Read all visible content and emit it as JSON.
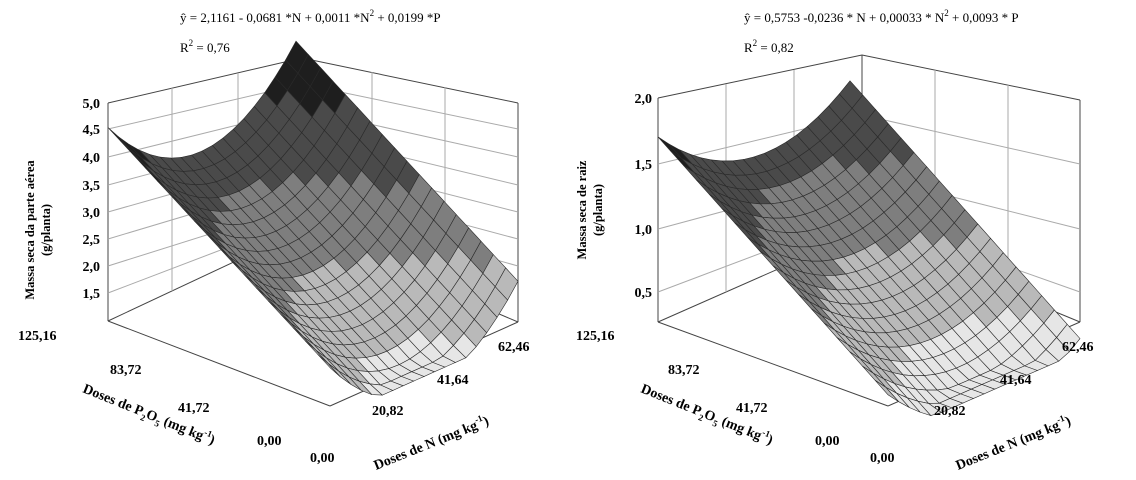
{
  "chart_data": [
    {
      "type": "surface3d",
      "equation": {
        "prefix": "ŷ = 2,1161 - 0,0681 *N + 0,0011 *N",
        "sup": "2",
        "suffix": " + 0,0199 *P"
      },
      "r2": {
        "prefix": "R",
        "sup": "2",
        "suffix": " = 0,76"
      },
      "coefficients": {
        "b0": 2.1161,
        "bN": -0.0681,
        "bN2": 0.0011,
        "bP": 0.0199
      },
      "zlabel_line1": "Massa seca da parte aérea",
      "zlabel_line2": "(g/planta)",
      "zlim": [
        1.5,
        5.0
      ],
      "zticks": [
        "5,0",
        "4,5",
        "4,0",
        "3,5",
        "3,0",
        "2,5",
        "2,0",
        "1,5"
      ],
      "p_ticks": [
        "0,00",
        "41,72",
        "83,72",
        "125,16"
      ],
      "n_ticks": [
        "0,00",
        "20,82",
        "41,64",
        "62,46"
      ],
      "xlabel_text": "Doses de P",
      "xlabel_sub": "2",
      "xlabel_mid": "O",
      "xlabel_sub2": "5",
      "xlabel_unit": " (mg kg",
      "xlabel_sup": "-1",
      "xlabel_close": ")",
      "ylabel_text": "Doses de N (mg kg",
      "ylabel_sup": "-1",
      "ylabel_close": ")",
      "p_range": [
        0,
        125.16
      ],
      "n_range": [
        0,
        62.46
      ]
    },
    {
      "type": "surface3d",
      "equation": {
        "prefix": "ŷ = 0,5753 -0,0236 * N + 0,00033 * N",
        "sup": "2",
        "suffix": " + 0,0093 * P"
      },
      "r2": {
        "prefix": "R",
        "sup": "2",
        "suffix": " = 0,82"
      },
      "coefficients": {
        "b0": 0.5753,
        "bN": -0.0236,
        "bN2": 0.00033,
        "bP": 0.0093
      },
      "zlabel_line1": "Massa seca de raiz",
      "zlabel_line2": "(g/planta)",
      "zlim": [
        0.5,
        2.0
      ],
      "zticks": [
        "2,0",
        "1,5",
        "1,0",
        "0,5"
      ],
      "p_ticks": [
        "0,00",
        "41,72",
        "83,72",
        "125,16"
      ],
      "n_ticks": [
        "0,00",
        "20,82",
        "41,64",
        "62,46"
      ],
      "xlabel_text": "Doses de P",
      "xlabel_sub": "2",
      "xlabel_mid": "O",
      "xlabel_sub2": "5",
      "xlabel_unit": " (mg kg",
      "xlabel_sup": "-1",
      "xlabel_close": ")",
      "ylabel_text": "Doses de N (mg kg",
      "ylabel_sup": "-1",
      "ylabel_close": ")",
      "p_range": [
        0,
        125.16
      ],
      "n_range": [
        0,
        62.46
      ]
    }
  ]
}
